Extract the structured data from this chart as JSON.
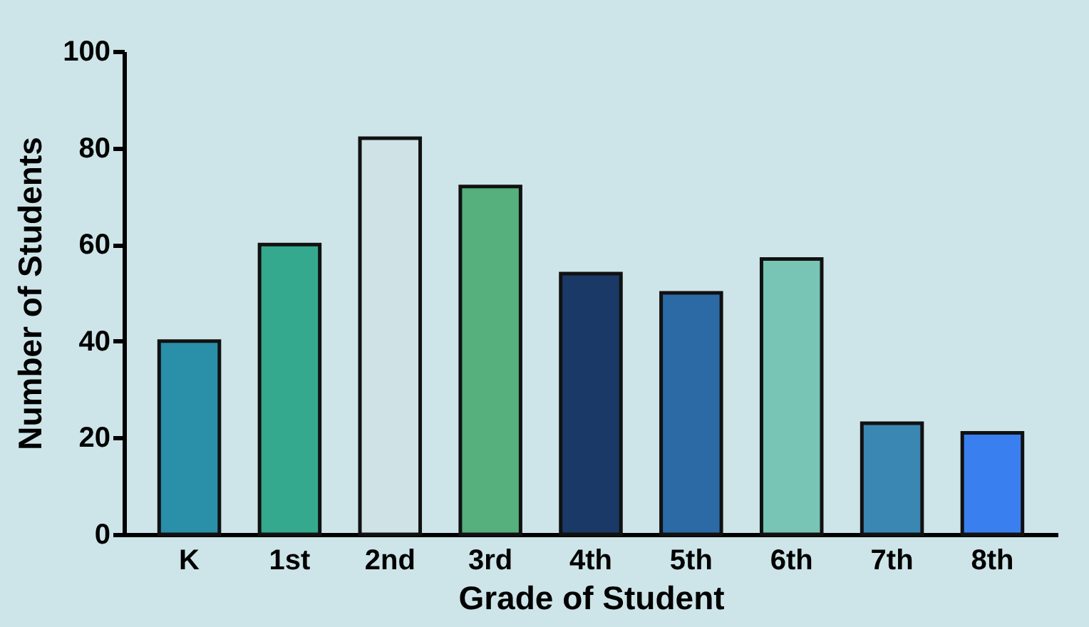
{
  "chart_data": {
    "type": "bar",
    "xlabel": "Grade of Student",
    "ylabel": "Number of Students",
    "categories": [
      "K",
      "1st",
      "2nd",
      "3rd",
      "4th",
      "5th",
      "6th",
      "7th",
      "8th"
    ],
    "values": [
      40,
      60,
      82,
      72,
      54,
      50,
      57,
      23,
      21
    ],
    "colors": [
      "#2a8fa8",
      "#35a98e",
      "#cfe3e6",
      "#55b07e",
      "#1a3966",
      "#2b6aa5",
      "#78c4b5",
      "#3a87b3",
      "#3a7ff0"
    ],
    "ylim": [
      0,
      100
    ],
    "yticks": [
      0,
      20,
      40,
      60,
      80,
      100
    ],
    "grid": false
  }
}
